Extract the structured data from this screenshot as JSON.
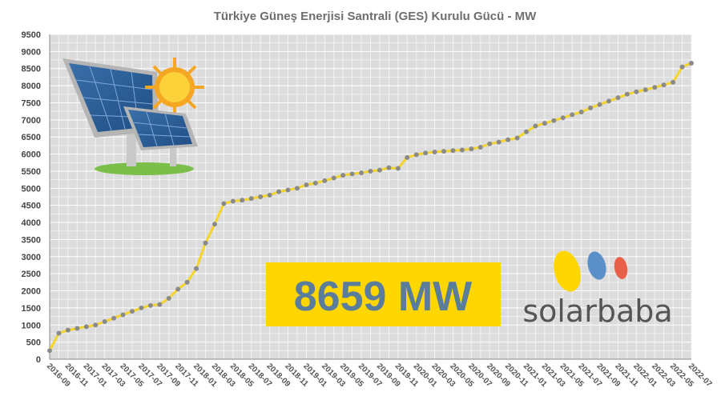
{
  "chart_data": {
    "type": "line",
    "title": "Türkiye Güneş Enerjisi Santrali (GES) Kurulu Gücü - MW",
    "xlabel": "",
    "ylabel": "",
    "ylim": [
      0,
      9500
    ],
    "yticks": [
      0,
      500,
      1000,
      1500,
      2000,
      2500,
      3000,
      3500,
      4000,
      4500,
      5000,
      5500,
      6000,
      6500,
      7000,
      7500,
      8000,
      8500,
      9000,
      9500
    ],
    "x": [
      "2016-09",
      "2016-10",
      "2016-11",
      "2016-12",
      "2017-01",
      "2017-02",
      "2017-03",
      "2017-04",
      "2017-05",
      "2017-06",
      "2017-07",
      "2017-08",
      "2017-09",
      "2017-10",
      "2017-11",
      "2017-12",
      "2018-01",
      "2018-02",
      "2018-03",
      "2018-04",
      "2018-05",
      "2018-06",
      "2018-07",
      "2018-08",
      "2018-09",
      "2018-10",
      "2018-11",
      "2018-12",
      "2019-01",
      "2019-02",
      "2019-03",
      "2019-04",
      "2019-05",
      "2019-06",
      "2019-07",
      "2019-08",
      "2019-09",
      "2019-10",
      "2019-11",
      "2019-12",
      "2020-01",
      "2020-02",
      "2020-03",
      "2020-04",
      "2020-05",
      "2020-06",
      "2020-07",
      "2020-08",
      "2020-09",
      "2020-10",
      "2020-11",
      "2020-12",
      "2021-01",
      "2021-02",
      "2021-03",
      "2021-04",
      "2021-05",
      "2021-06",
      "2021-07",
      "2021-08",
      "2021-09",
      "2021-10",
      "2021-11",
      "2021-12",
      "2022-01",
      "2022-02",
      "2022-03",
      "2022-04",
      "2022-05",
      "2022-06",
      "2022-07"
    ],
    "xtick_labels": [
      "2016-09",
      "2016-11",
      "2017-01",
      "2017-03",
      "2017-05",
      "2017-07",
      "2017-09",
      "2017-11",
      "2018-01",
      "2018-03",
      "2018-05",
      "2018-07",
      "2018-09",
      "2018-11",
      "2019-01",
      "2019-03",
      "2019-05",
      "2019-07",
      "2019-09",
      "2019-11",
      "2020-01",
      "2020-03",
      "2020-05",
      "2020-07",
      "2020-09",
      "2020-11",
      "2021-01",
      "2021-03",
      "2021-05",
      "2021-07",
      "2021-09",
      "2021-11",
      "2022-01",
      "2022-03",
      "2022-05",
      "2022-07"
    ],
    "series": [
      {
        "name": "",
        "values": [
          250,
          760,
          850,
          900,
          950,
          1000,
          1100,
          1200,
          1300,
          1400,
          1500,
          1570,
          1600,
          1780,
          2050,
          2250,
          2650,
          3400,
          3950,
          4550,
          4620,
          4650,
          4700,
          4750,
          4800,
          4900,
          4950,
          5000,
          5100,
          5150,
          5220,
          5300,
          5380,
          5420,
          5450,
          5500,
          5530,
          5600,
          5580,
          5900,
          5980,
          6030,
          6060,
          6080,
          6100,
          6120,
          6150,
          6200,
          6300,
          6350,
          6420,
          6470,
          6650,
          6820,
          6900,
          6980,
          7060,
          7150,
          7230,
          7350,
          7450,
          7550,
          7650,
          7750,
          7820,
          7880,
          7950,
          8020,
          8100,
          8550,
          8659
        ]
      }
    ],
    "line_color": "#f5d52a",
    "marker_color": "#8a8a8a",
    "plot_background": "#dcdcdc",
    "grid": true,
    "legend": "none"
  },
  "badge": {
    "text": "8659 MW",
    "background": "#ffd600",
    "text_color": "#5b7d9c"
  },
  "logo": {
    "text": "solarbaba",
    "dot_colors": [
      "#ffd600",
      "#5b8fc7",
      "#e8604a"
    ]
  }
}
